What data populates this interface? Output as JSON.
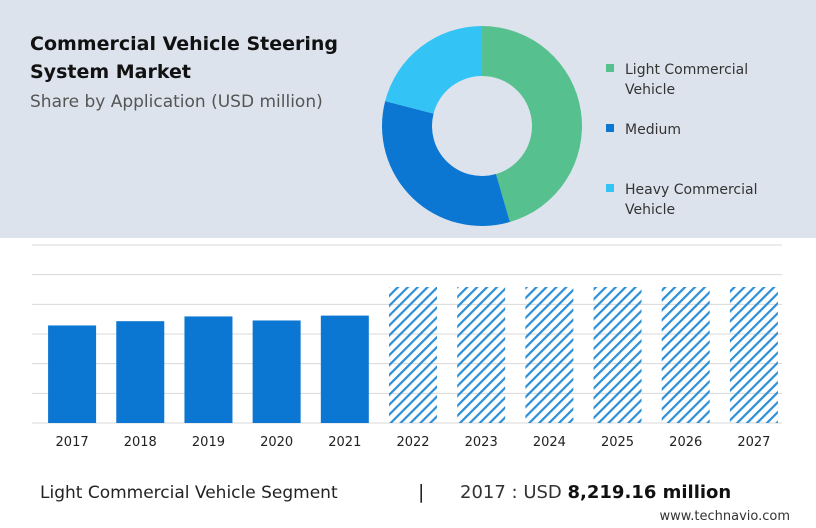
{
  "header": {
    "title": "Commercial Vehicle Steering System Market",
    "subtitle": "Share by Application (USD million)"
  },
  "colors": {
    "light_commercial": "#56c08f",
    "medium": "#0b77d2",
    "heavy_commercial": "#33c3f5",
    "bar": "#0b77d2",
    "hatch": "#2c8fd6",
    "panel": "#dde3ed",
    "grid": "#d8d8d8"
  },
  "legend": [
    {
      "label_line1": "Light Commercial",
      "label_line2": "Vehicle",
      "color": "#56c08f"
    },
    {
      "label_line1": "Medium",
      "label_line2": "",
      "color": "#0b77d2"
    },
    {
      "label_line1": "Heavy Commercial",
      "label_line2": "Vehicle",
      "color": "#33c3f5"
    }
  ],
  "chart_data": [
    {
      "type": "pie",
      "donut": true,
      "categories": [
        "Light Commercial Vehicle",
        "Medium",
        "Heavy Commercial Vehicle"
      ],
      "values": [
        45.5,
        33.5,
        21.0
      ],
      "colors": [
        "#56c08f",
        "#0b77d2",
        "#33c3f5"
      ]
    },
    {
      "type": "bar",
      "categories": [
        "2017",
        "2018",
        "2019",
        "2020",
        "2021",
        "2022",
        "2023",
        "2024",
        "2025",
        "2026",
        "2027"
      ],
      "values": [
        8219.16,
        8580,
        8980,
        8640,
        9050,
        null,
        null,
        null,
        null,
        null,
        null
      ],
      "forecast": [
        false,
        false,
        false,
        false,
        false,
        true,
        true,
        true,
        true,
        true,
        true
      ],
      "ylim": [
        0,
        15000
      ],
      "grid": true,
      "xlabel": "",
      "ylabel": ""
    }
  ],
  "footer": {
    "segment_label": "Light Commercial Vehicle Segment",
    "separator": "|",
    "stat_prefix": "2017 : USD",
    "stat_value": "8,219.16 million",
    "watermark": "www.technavio.com"
  }
}
